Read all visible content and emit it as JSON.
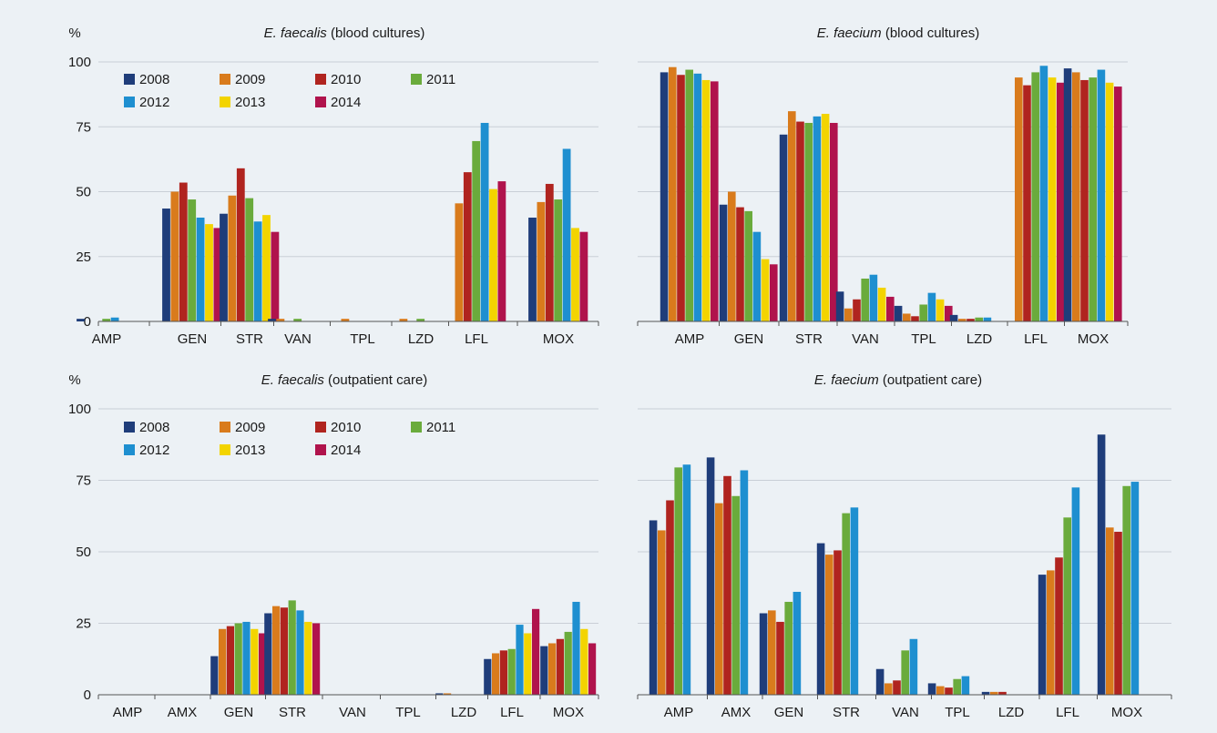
{
  "colors": {
    "background": "#ecf1f5",
    "axis": "#555555",
    "gridline": "#c9cfd6",
    "series": [
      "#1f3d7a",
      "#d97b1c",
      "#b0241f",
      "#6aab3c",
      "#1e8fd0",
      "#f3d400",
      "#b0134c"
    ]
  },
  "legend_years": [
    "2008",
    "2009",
    "2010",
    "2011",
    "2012",
    "2013",
    "2014"
  ],
  "chart_data": [
    {
      "type": "bar",
      "unit": "%",
      "title_italic": "E. faecalis",
      "title_rest": " (blood cultures)",
      "ylim": [
        0,
        100
      ],
      "yticks": [
        0,
        25,
        50,
        75,
        100
      ],
      "grid": true,
      "legend": "top-left",
      "categories": [
        "AMP",
        "GEN",
        "STR",
        "VAN",
        "TPL",
        "LZD",
        "LFL",
        "MOX"
      ],
      "series": [
        {
          "name": "2008",
          "values": [
            1,
            43.5,
            41.5,
            1,
            null,
            null,
            null,
            40
          ]
        },
        {
          "name": "2009",
          "values": [
            0,
            50,
            48.5,
            1,
            1,
            1,
            45.5,
            46
          ]
        },
        {
          "name": "2010",
          "values": [
            0,
            53.5,
            59,
            0,
            0,
            0,
            57.5,
            53
          ]
        },
        {
          "name": "2011",
          "values": [
            1,
            47,
            47.5,
            1,
            0,
            1,
            69.5,
            47
          ]
        },
        {
          "name": "2012",
          "values": [
            1.5,
            40,
            38.5,
            0,
            0,
            0,
            76.5,
            66.5
          ]
        },
        {
          "name": "2013",
          "values": [
            0,
            37.5,
            41,
            0,
            0,
            0,
            51,
            36
          ]
        },
        {
          "name": "2014",
          "values": [
            0,
            36,
            34.5,
            0,
            0,
            0,
            54,
            34.5
          ]
        }
      ]
    },
    {
      "type": "bar",
      "unit": "",
      "title_italic": "E. faecium",
      "title_rest": " (blood cultures)",
      "ylim": [
        0,
        100
      ],
      "grid": true,
      "categories": [
        "AMP",
        "GEN",
        "STR",
        "VAN",
        "TPL",
        "LZD",
        "LFL",
        "MOX"
      ],
      "series": [
        {
          "name": "2008",
          "values": [
            96,
            45,
            72,
            11.5,
            6,
            2.5,
            null,
            97.5
          ]
        },
        {
          "name": "2009",
          "values": [
            98,
            50,
            81,
            5,
            3,
            1,
            94,
            96
          ]
        },
        {
          "name": "2010",
          "values": [
            95,
            44,
            77,
            8.5,
            2,
            1,
            91,
            93
          ]
        },
        {
          "name": "2011",
          "values": [
            97,
            42.5,
            76.5,
            16.5,
            6.5,
            1.5,
            96,
            94
          ]
        },
        {
          "name": "2012",
          "values": [
            95.5,
            34.5,
            79,
            18,
            11,
            1.5,
            98.5,
            97
          ]
        },
        {
          "name": "2013",
          "values": [
            93,
            24,
            80,
            13,
            8.5,
            0,
            94,
            92
          ]
        },
        {
          "name": "2014",
          "values": [
            92.5,
            22,
            76.5,
            9.5,
            6,
            0,
            92,
            90.5
          ]
        }
      ]
    },
    {
      "type": "bar",
      "unit": "%",
      "title_italic": "E. faecalis",
      "title_rest": " (outpatient care)",
      "ylim": [
        0,
        100
      ],
      "yticks": [
        0,
        25,
        50,
        75,
        100
      ],
      "grid": true,
      "legend": "top-left",
      "categories": [
        "AMP",
        "AMX",
        "GEN",
        "STR",
        "VAN",
        "TPL",
        "LZD",
        "LFL",
        "MOX"
      ],
      "series": [
        {
          "name": "2008",
          "values": [
            0,
            0,
            13.5,
            28.5,
            0,
            0,
            0.5,
            12.5,
            17
          ]
        },
        {
          "name": "2009",
          "values": [
            0,
            0,
            23,
            31,
            0,
            0,
            0.5,
            14.5,
            18
          ]
        },
        {
          "name": "2010",
          "values": [
            0,
            0,
            24,
            30.5,
            0,
            0,
            0,
            15.5,
            19.5
          ]
        },
        {
          "name": "2011",
          "values": [
            0,
            0,
            25,
            33,
            0,
            0,
            0,
            16,
            22
          ]
        },
        {
          "name": "2012",
          "values": [
            0,
            0,
            25.5,
            29.5,
            0,
            0,
            0,
            24.5,
            32.5
          ]
        },
        {
          "name": "2013",
          "values": [
            0,
            0,
            23,
            25.5,
            0,
            0,
            0,
            21.5,
            23
          ]
        },
        {
          "name": "2014",
          "values": [
            0,
            0,
            21.5,
            25,
            0,
            0,
            0,
            30,
            18
          ]
        }
      ]
    },
    {
      "type": "bar",
      "unit": "",
      "title_italic": "E. faecium",
      "title_rest": " (outpatient care)",
      "ylim": [
        0,
        100
      ],
      "grid": true,
      "categories": [
        "AMP",
        "AMX",
        "GEN",
        "STR",
        "VAN",
        "TPL",
        "LZD",
        "LFL",
        "MOX"
      ],
      "series": [
        {
          "name": "2008",
          "values": [
            61,
            83,
            28.5,
            53,
            9,
            4,
            1,
            42,
            91
          ]
        },
        {
          "name": "2009",
          "values": [
            57.5,
            67,
            29.5,
            49,
            4,
            3,
            1,
            43.5,
            58.5
          ]
        },
        {
          "name": "2010",
          "values": [
            68,
            76.5,
            25.5,
            50.5,
            5,
            2.5,
            1,
            48,
            57
          ]
        },
        {
          "name": "2011",
          "values": [
            79.5,
            69.5,
            32.5,
            63.5,
            15.5,
            5.5,
            0,
            62,
            73
          ]
        },
        {
          "name": "2012",
          "values": [
            80.5,
            78.5,
            36,
            65.5,
            19.5,
            6.5,
            0,
            72.5,
            74.5
          ]
        },
        {
          "name": "2013",
          "values": [
            null,
            null,
            null,
            null,
            null,
            null,
            null,
            null,
            null
          ]
        },
        {
          "name": "2014",
          "values": [
            null,
            null,
            null,
            null,
            null,
            null,
            null,
            null,
            null
          ]
        }
      ]
    }
  ]
}
